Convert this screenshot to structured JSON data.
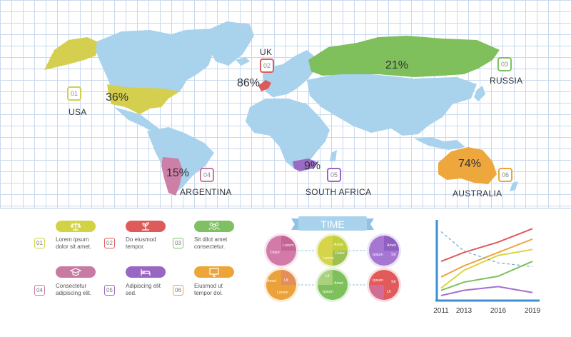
{
  "map": {
    "countries": [
      {
        "name": "USA",
        "percent": "36%",
        "number": "01",
        "color": "#d4cf4e"
      },
      {
        "name": "UK",
        "percent": "86%",
        "number": "02",
        "color": "#dd5a5a"
      },
      {
        "name": "RUSSIA",
        "percent": "21%",
        "number": "03",
        "color": "#7fbf5c"
      },
      {
        "name": "ARGENTINA",
        "percent": "15%",
        "number": "04",
        "color": "#cd7fa7"
      },
      {
        "name": "SOUTH AFRICA",
        "percent": "9%",
        "number": "05",
        "color": "#9a6bc2"
      },
      {
        "name": "AUSTRALIA",
        "percent": "74%",
        "number": "06",
        "color": "#eea73d"
      }
    ]
  },
  "legend": {
    "items": [
      {
        "number": "01",
        "line1": "Lorem   ipsum",
        "line2": "dolor sit amet.",
        "color": "#d2d344",
        "icon": "scale-icon"
      },
      {
        "number": "02",
        "line1": "Do     eiusmod",
        "line2": "tempor.",
        "color": "#de5b5b",
        "icon": "growing-plant-icon"
      },
      {
        "number": "03",
        "line1": "Sit  dilot  amet",
        "line2": "consectetur.",
        "color": "#7ec062",
        "icon": "people-group-icon"
      },
      {
        "number": "04",
        "line1": "Consectetur",
        "line2": "adipiscing elit.",
        "color": "#c77aa2",
        "icon": "graduation-cap-icon"
      },
      {
        "number": "05",
        "line1": "Adipiscing  elit",
        "line2": "sed.",
        "color": "#9966c2",
        "icon": "hospital-bed-icon"
      },
      {
        "number": "06",
        "line1": "Eiusmod      ut",
        "line2": "tempor dol.",
        "color": "#eda53a",
        "icon": "computer-monitor-icon"
      }
    ]
  },
  "time": {
    "title": "TIME",
    "pies": [
      {
        "labels": [
          "Lorem",
          "Dolor"
        ],
        "color_main": "#d27aa8",
        "color_alt": "#c46596"
      },
      {
        "labels": [
          "Amet",
          "Dolor",
          "Lorem"
        ],
        "color_main": "#d6d54a",
        "color_alt": "#9cc154"
      },
      {
        "labels": [
          "Amet",
          "Ipsum",
          "Sit"
        ],
        "color_main": "#a577d2",
        "color_alt": "#8f5fc2"
      },
      {
        "labels": [
          "Amet",
          "Lorem",
          "Ut"
        ],
        "color_main": "#eca23a",
        "color_alt": "#e48f5a"
      },
      {
        "labels": [
          "Ut",
          "Amet",
          "Ipsum"
        ],
        "color_main": "#7ec05c",
        "color_alt": "#a8d27d"
      },
      {
        "labels": [
          "Ipsum",
          "Ut",
          "Sit"
        ],
        "color_main": "#e25a5a",
        "color_alt": "#d36b95"
      }
    ]
  },
  "chart_data": {
    "type": "line",
    "x": [
      2011,
      2013,
      2016,
      2019
    ],
    "x_tick_labels": [
      "2011",
      "2013",
      "2016",
      "2019"
    ],
    "ylim": [
      0,
      100
    ],
    "grid": false,
    "series": [
      {
        "color": "#e05a5a",
        "values": [
          48,
          60,
          74,
          92
        ]
      },
      {
        "color": "#f0a342",
        "values": [
          27,
          42,
          60,
          78
        ]
      },
      {
        "color": "#d8d640",
        "values": [
          12,
          36,
          56,
          64
        ]
      },
      {
        "color": "#7ec05c",
        "values": [
          9,
          20,
          28,
          48
        ]
      },
      {
        "color": "#a56fcf",
        "values": [
          2,
          9,
          14,
          6
        ]
      },
      {
        "color": "#6aa8d8",
        "dashed": true,
        "values": [
          88,
          62,
          46,
          41
        ]
      }
    ]
  }
}
